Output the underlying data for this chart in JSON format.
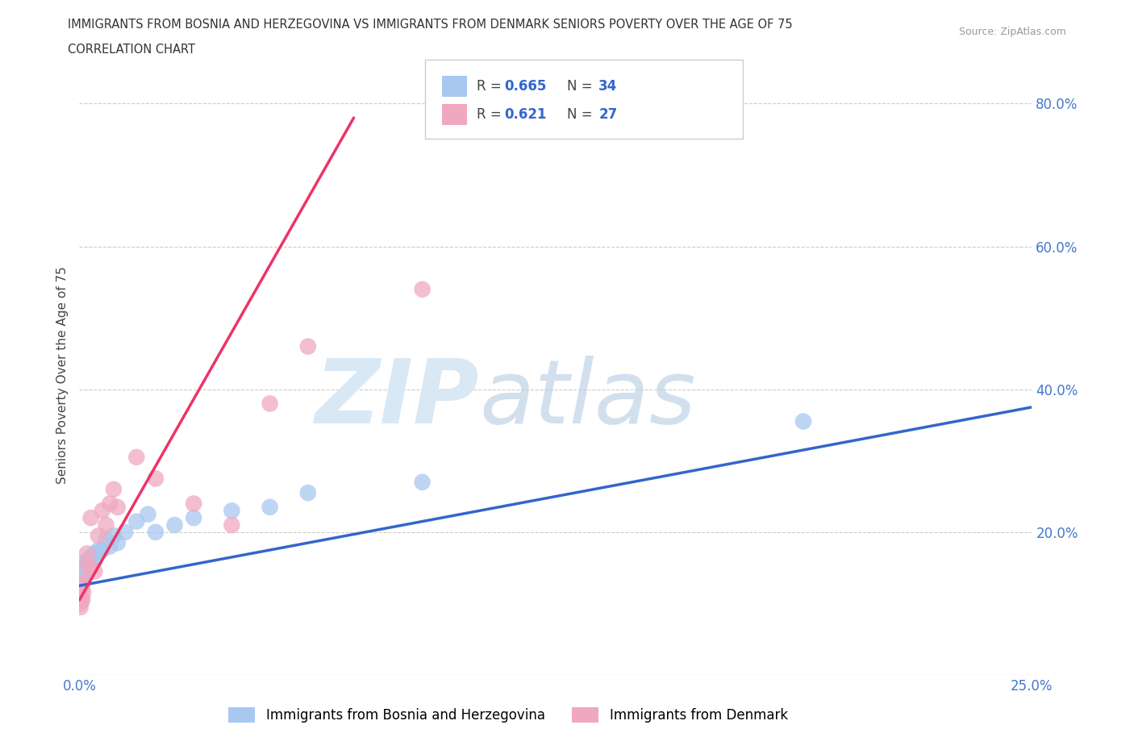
{
  "title_line1": "IMMIGRANTS FROM BOSNIA AND HERZEGOVINA VS IMMIGRANTS FROM DENMARK SENIORS POVERTY OVER THE AGE OF 75",
  "title_line2": "CORRELATION CHART",
  "source_text": "Source: ZipAtlas.com",
  "ylabel": "Seniors Poverty Over the Age of 75",
  "xlim": [
    0.0,
    0.25
  ],
  "ylim": [
    0.0,
    0.84
  ],
  "bosnia_color": "#a8c8f0",
  "denmark_color": "#f0a8c0",
  "bosnia_R": 0.665,
  "bosnia_N": 34,
  "denmark_R": 0.621,
  "denmark_N": 27,
  "bosnia_line_color": "#3366cc",
  "denmark_line_color": "#ee3366",
  "legend_R_color": "#3366cc",
  "background_color": "#ffffff",
  "grid_color": "#cccccc",
  "bosnia_legend_label": "Immigrants from Bosnia and Herzegovina",
  "denmark_legend_label": "Immigrants from Denmark",
  "bosnia_x": [
    0.0002,
    0.0003,
    0.0004,
    0.0005,
    0.0006,
    0.0007,
    0.0008,
    0.0009,
    0.001,
    0.001,
    0.001,
    0.002,
    0.002,
    0.003,
    0.003,
    0.004,
    0.004,
    0.005,
    0.006,
    0.007,
    0.008,
    0.009,
    0.01,
    0.012,
    0.015,
    0.018,
    0.02,
    0.025,
    0.03,
    0.04,
    0.05,
    0.06,
    0.09,
    0.19
  ],
  "bosnia_y": [
    0.13,
    0.14,
    0.125,
    0.135,
    0.13,
    0.145,
    0.13,
    0.14,
    0.15,
    0.155,
    0.145,
    0.16,
    0.155,
    0.165,
    0.155,
    0.17,
    0.16,
    0.175,
    0.175,
    0.19,
    0.18,
    0.195,
    0.185,
    0.2,
    0.215,
    0.225,
    0.2,
    0.21,
    0.22,
    0.23,
    0.235,
    0.255,
    0.27,
    0.355
  ],
  "denmark_x": [
    0.0002,
    0.0003,
    0.0004,
    0.0005,
    0.0006,
    0.0007,
    0.0008,
    0.001,
    0.001,
    0.002,
    0.002,
    0.003,
    0.003,
    0.004,
    0.005,
    0.006,
    0.007,
    0.008,
    0.009,
    0.01,
    0.015,
    0.02,
    0.03,
    0.04,
    0.05,
    0.06,
    0.09
  ],
  "denmark_y": [
    0.1,
    0.095,
    0.11,
    0.105,
    0.12,
    0.125,
    0.105,
    0.115,
    0.13,
    0.155,
    0.17,
    0.15,
    0.22,
    0.145,
    0.195,
    0.23,
    0.21,
    0.24,
    0.26,
    0.235,
    0.305,
    0.275,
    0.24,
    0.21,
    0.38,
    0.46,
    0.54
  ],
  "bosnia_line_x": [
    0.0,
    0.25
  ],
  "bosnia_line_y": [
    0.125,
    0.375
  ],
  "denmark_line_x": [
    0.0,
    0.072
  ],
  "denmark_line_y": [
    0.105,
    0.78
  ]
}
